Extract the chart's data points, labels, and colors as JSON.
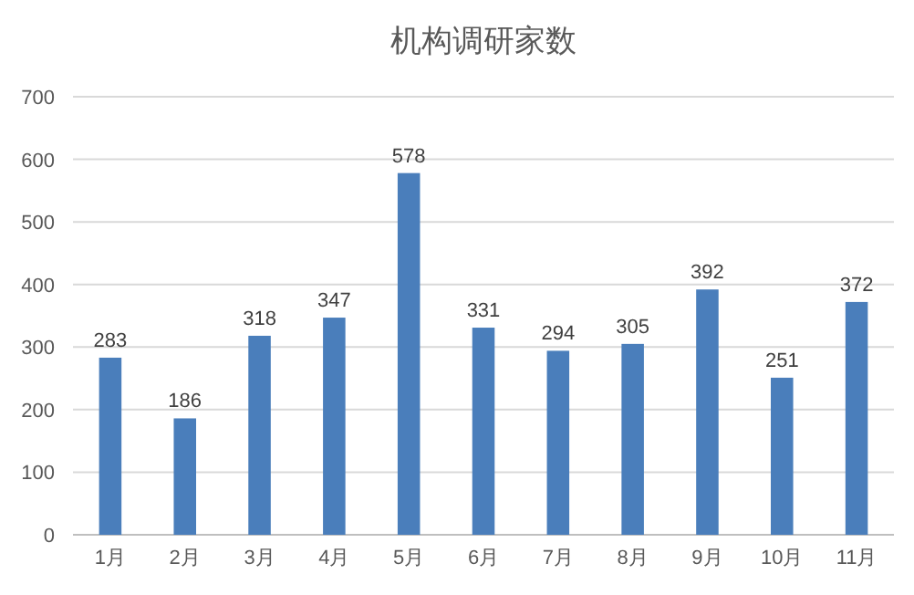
{
  "chart_data": {
    "type": "bar",
    "title": "机构调研家数",
    "categories": [
      "1月",
      "2月",
      "3月",
      "4月",
      "5月",
      "6月",
      "7月",
      "8月",
      "9月",
      "10月",
      "11月"
    ],
    "values": [
      283,
      186,
      318,
      347,
      578,
      331,
      294,
      305,
      392,
      251,
      372
    ],
    "color": "#4a7ebb",
    "ylim": [
      0,
      700
    ],
    "yticks": [
      0,
      100,
      200,
      300,
      400,
      500,
      600,
      700
    ],
    "grid": "y",
    "data_labels": true
  }
}
